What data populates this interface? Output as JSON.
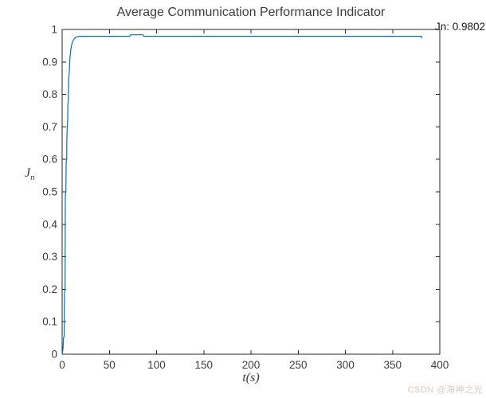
{
  "figure": {
    "title": "Average Communication Performance Indicator",
    "annotation": "Jn: 0.9802",
    "ylabel_main": "J",
    "ylabel_sub": "n",
    "xlabel": "t(s)",
    "watermark": "CSDN @海神之光",
    "colors": {
      "line": "#0072BD",
      "axis": "#262626",
      "text": "#3c3c3c",
      "watermark": "#d8cccb"
    }
  },
  "chart_data": {
    "type": "line",
    "title": "Average Communication Performance Indicator",
    "xlabel": "t(s)",
    "ylabel": "J_n",
    "xlim": [
      0,
      400
    ],
    "ylim": [
      0,
      1
    ],
    "xticks": [
      0,
      50,
      100,
      150,
      200,
      250,
      300,
      350,
      400
    ],
    "xticklabels": [
      "0",
      "50",
      "100",
      "150",
      "200",
      "250",
      "300",
      "350",
      "400"
    ],
    "yticks": [
      0,
      0.1,
      0.2,
      0.3,
      0.4,
      0.5,
      0.6,
      0.7,
      0.8,
      0.9,
      1
    ],
    "yticklabels": [
      "0",
      "0.1",
      "0.2",
      "0.3",
      "0.4",
      "0.5",
      "0.6",
      "0.7",
      "0.8",
      "0.9",
      "1"
    ],
    "grid": false,
    "legend": null,
    "line_color": "#0072BD",
    "annotation": {
      "text": "Jn: 0.9802",
      "value": 0.9802
    },
    "series": [
      {
        "name": "Jn",
        "points": [
          [
            0,
            0
          ],
          [
            0.6,
            0.01
          ],
          [
            1,
            0.02
          ],
          [
            1.4,
            0.05
          ],
          [
            2.1,
            0.055
          ],
          [
            2.4,
            0.19
          ],
          [
            3.1,
            0.2
          ],
          [
            3.4,
            0.49
          ],
          [
            4.0,
            0.5
          ],
          [
            4.2,
            0.59
          ],
          [
            4.8,
            0.6
          ],
          [
            5.0,
            0.66
          ],
          [
            5.4,
            0.7
          ],
          [
            5.9,
            0.72
          ],
          [
            6.1,
            0.77
          ],
          [
            6.6,
            0.78
          ],
          [
            6.9,
            0.85
          ],
          [
            7.6,
            0.87
          ],
          [
            8.2,
            0.91
          ],
          [
            9,
            0.935
          ],
          [
            10,
            0.952
          ],
          [
            11,
            0.961
          ],
          [
            12,
            0.968
          ],
          [
            13.5,
            0.9735
          ],
          [
            15.5,
            0.977
          ],
          [
            19,
            0.979
          ],
          [
            71.5,
            0.979
          ],
          [
            72.5,
            0.9835
          ],
          [
            85.5,
            0.9835
          ],
          [
            86.5,
            0.979
          ],
          [
            379,
            0.979
          ],
          [
            380.5,
            0.979
          ],
          [
            381,
            0.9725
          ]
        ]
      }
    ]
  }
}
